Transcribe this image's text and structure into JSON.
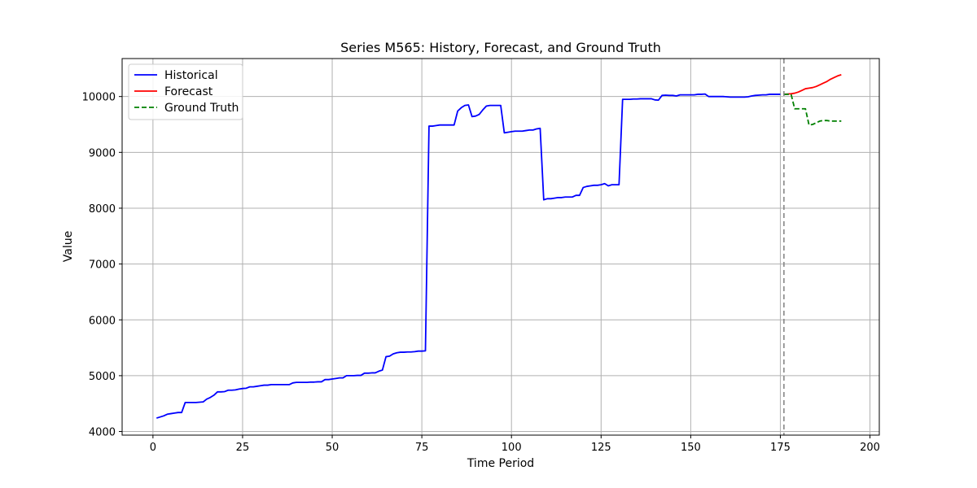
{
  "chart_data": {
    "type": "line",
    "title": "Series M565: History, Forecast, and Ground Truth",
    "xlabel": "Time Period",
    "ylabel": "Value",
    "xlim": [
      -8.6,
      202.6
    ],
    "ylim": [
      3935,
      10680
    ],
    "xticks": [
      0,
      25,
      50,
      75,
      100,
      125,
      150,
      175,
      200
    ],
    "yticks": [
      4000,
      5000,
      6000,
      7000,
      8000,
      9000,
      10000
    ],
    "grid": true,
    "legend_position": "upper-left",
    "forecast_start": 176,
    "colors": {
      "historical": "#0000ff",
      "forecast": "#ff0000",
      "ground_truth": "#008000",
      "divider": "#808080",
      "grid": "#b0b0b0"
    },
    "series": [
      {
        "name": "Historical",
        "style": "solid",
        "color": "#0000ff",
        "points": [
          [
            1,
            4240
          ],
          [
            2,
            4260
          ],
          [
            3,
            4280
          ],
          [
            4,
            4310
          ],
          [
            5,
            4320
          ],
          [
            6,
            4330
          ],
          [
            7,
            4340
          ],
          [
            8,
            4340
          ],
          [
            9,
            4520
          ],
          [
            10,
            4520
          ],
          [
            11,
            4520
          ],
          [
            12,
            4520
          ],
          [
            13,
            4525
          ],
          [
            14,
            4530
          ],
          [
            15,
            4580
          ],
          [
            16,
            4610
          ],
          [
            17,
            4650
          ],
          [
            18,
            4710
          ],
          [
            19,
            4710
          ],
          [
            20,
            4715
          ],
          [
            21,
            4740
          ],
          [
            22,
            4740
          ],
          [
            23,
            4745
          ],
          [
            24,
            4760
          ],
          [
            25,
            4770
          ],
          [
            26,
            4775
          ],
          [
            27,
            4800
          ],
          [
            28,
            4800
          ],
          [
            29,
            4810
          ],
          [
            30,
            4820
          ],
          [
            31,
            4830
          ],
          [
            32,
            4830
          ],
          [
            33,
            4840
          ],
          [
            34,
            4840
          ],
          [
            35,
            4840
          ],
          [
            36,
            4840
          ],
          [
            37,
            4840
          ],
          [
            38,
            4840
          ],
          [
            39,
            4870
          ],
          [
            40,
            4880
          ],
          [
            41,
            4880
          ],
          [
            42,
            4880
          ],
          [
            43,
            4880
          ],
          [
            44,
            4885
          ],
          [
            45,
            4885
          ],
          [
            46,
            4890
          ],
          [
            47,
            4890
          ],
          [
            48,
            4930
          ],
          [
            49,
            4930
          ],
          [
            50,
            4940
          ],
          [
            51,
            4950
          ],
          [
            52,
            4960
          ],
          [
            53,
            4960
          ],
          [
            54,
            5000
          ],
          [
            55,
            5000
          ],
          [
            56,
            5000
          ],
          [
            57,
            5005
          ],
          [
            58,
            5005
          ],
          [
            59,
            5045
          ],
          [
            60,
            5045
          ],
          [
            61,
            5050
          ],
          [
            62,
            5050
          ],
          [
            63,
            5080
          ],
          [
            64,
            5100
          ],
          [
            65,
            5340
          ],
          [
            66,
            5350
          ],
          [
            67,
            5390
          ],
          [
            68,
            5410
          ],
          [
            69,
            5420
          ],
          [
            70,
            5420
          ],
          [
            71,
            5425
          ],
          [
            72,
            5425
          ],
          [
            73,
            5430
          ],
          [
            74,
            5440
          ],
          [
            75,
            5440
          ],
          [
            76,
            5445
          ],
          [
            77,
            9470
          ],
          [
            78,
            9470
          ],
          [
            79,
            9480
          ],
          [
            80,
            9490
          ],
          [
            81,
            9490
          ],
          [
            82,
            9490
          ],
          [
            83,
            9490
          ],
          [
            84,
            9490
          ],
          [
            85,
            9740
          ],
          [
            86,
            9800
          ],
          [
            87,
            9840
          ],
          [
            88,
            9850
          ],
          [
            89,
            9640
          ],
          [
            90,
            9650
          ],
          [
            91,
            9680
          ],
          [
            92,
            9760
          ],
          [
            93,
            9830
          ],
          [
            94,
            9840
          ],
          [
            95,
            9840
          ],
          [
            96,
            9840
          ],
          [
            97,
            9840
          ],
          [
            98,
            9350
          ],
          [
            99,
            9360
          ],
          [
            100,
            9370
          ],
          [
            101,
            9380
          ],
          [
            102,
            9380
          ],
          [
            103,
            9380
          ],
          [
            104,
            9390
          ],
          [
            105,
            9400
          ],
          [
            106,
            9400
          ],
          [
            107,
            9420
          ],
          [
            108,
            9430
          ],
          [
            109,
            8150
          ],
          [
            110,
            8170
          ],
          [
            111,
            8170
          ],
          [
            112,
            8180
          ],
          [
            113,
            8190
          ],
          [
            114,
            8190
          ],
          [
            115,
            8200
          ],
          [
            116,
            8200
          ],
          [
            117,
            8200
          ],
          [
            118,
            8230
          ],
          [
            119,
            8230
          ],
          [
            120,
            8370
          ],
          [
            121,
            8390
          ],
          [
            122,
            8400
          ],
          [
            123,
            8410
          ],
          [
            124,
            8410
          ],
          [
            125,
            8420
          ],
          [
            126,
            8440
          ],
          [
            127,
            8400
          ],
          [
            128,
            8420
          ],
          [
            129,
            8420
          ],
          [
            130,
            8420
          ],
          [
            131,
            9950
          ],
          [
            132,
            9950
          ],
          [
            133,
            9950
          ],
          [
            134,
            9955
          ],
          [
            135,
            9955
          ],
          [
            136,
            9960
          ],
          [
            137,
            9960
          ],
          [
            138,
            9960
          ],
          [
            139,
            9960
          ],
          [
            140,
            9940
          ],
          [
            141,
            9935
          ],
          [
            142,
            10020
          ],
          [
            143,
            10025
          ],
          [
            144,
            10020
          ],
          [
            145,
            10020
          ],
          [
            146,
            10010
          ],
          [
            147,
            10030
          ],
          [
            148,
            10030
          ],
          [
            149,
            10030
          ],
          [
            150,
            10030
          ],
          [
            151,
            10030
          ],
          [
            152,
            10040
          ],
          [
            153,
            10040
          ],
          [
            154,
            10045
          ],
          [
            155,
            10000
          ],
          [
            156,
            10000
          ],
          [
            157,
            10000
          ],
          [
            158,
            10000
          ],
          [
            159,
            10000
          ],
          [
            160,
            9995
          ],
          [
            161,
            9990
          ],
          [
            162,
            9990
          ],
          [
            163,
            9990
          ],
          [
            164,
            9990
          ],
          [
            165,
            9990
          ],
          [
            166,
            9995
          ],
          [
            167,
            10010
          ],
          [
            168,
            10020
          ],
          [
            169,
            10025
          ],
          [
            170,
            10030
          ],
          [
            171,
            10030
          ],
          [
            172,
            10040
          ],
          [
            173,
            10040
          ],
          [
            174,
            10040
          ],
          [
            175,
            10040
          ]
        ]
      },
      {
        "name": "Forecast",
        "style": "solid",
        "color": "#ff0000",
        "points": [
          [
            176,
            10040
          ],
          [
            177,
            10045
          ],
          [
            178,
            10050
          ],
          [
            179,
            10060
          ],
          [
            180,
            10080
          ],
          [
            181,
            10110
          ],
          [
            182,
            10140
          ],
          [
            183,
            10150
          ],
          [
            184,
            10160
          ],
          [
            185,
            10180
          ],
          [
            186,
            10210
          ],
          [
            187,
            10240
          ],
          [
            188,
            10270
          ],
          [
            189,
            10310
          ],
          [
            190,
            10340
          ],
          [
            191,
            10370
          ],
          [
            192,
            10390
          ]
        ]
      },
      {
        "name": "Ground Truth",
        "style": "dashed",
        "color": "#008000",
        "points": [
          [
            176,
            10040
          ],
          [
            177,
            10040
          ],
          [
            178,
            10040
          ],
          [
            179,
            9780
          ],
          [
            180,
            9780
          ],
          [
            181,
            9780
          ],
          [
            182,
            9780
          ],
          [
            183,
            9490
          ],
          [
            184,
            9500
          ],
          [
            185,
            9530
          ],
          [
            186,
            9560
          ],
          [
            187,
            9570
          ],
          [
            188,
            9570
          ],
          [
            189,
            9560
          ],
          [
            190,
            9560
          ],
          [
            191,
            9560
          ],
          [
            192,
            9560
          ]
        ]
      }
    ]
  }
}
